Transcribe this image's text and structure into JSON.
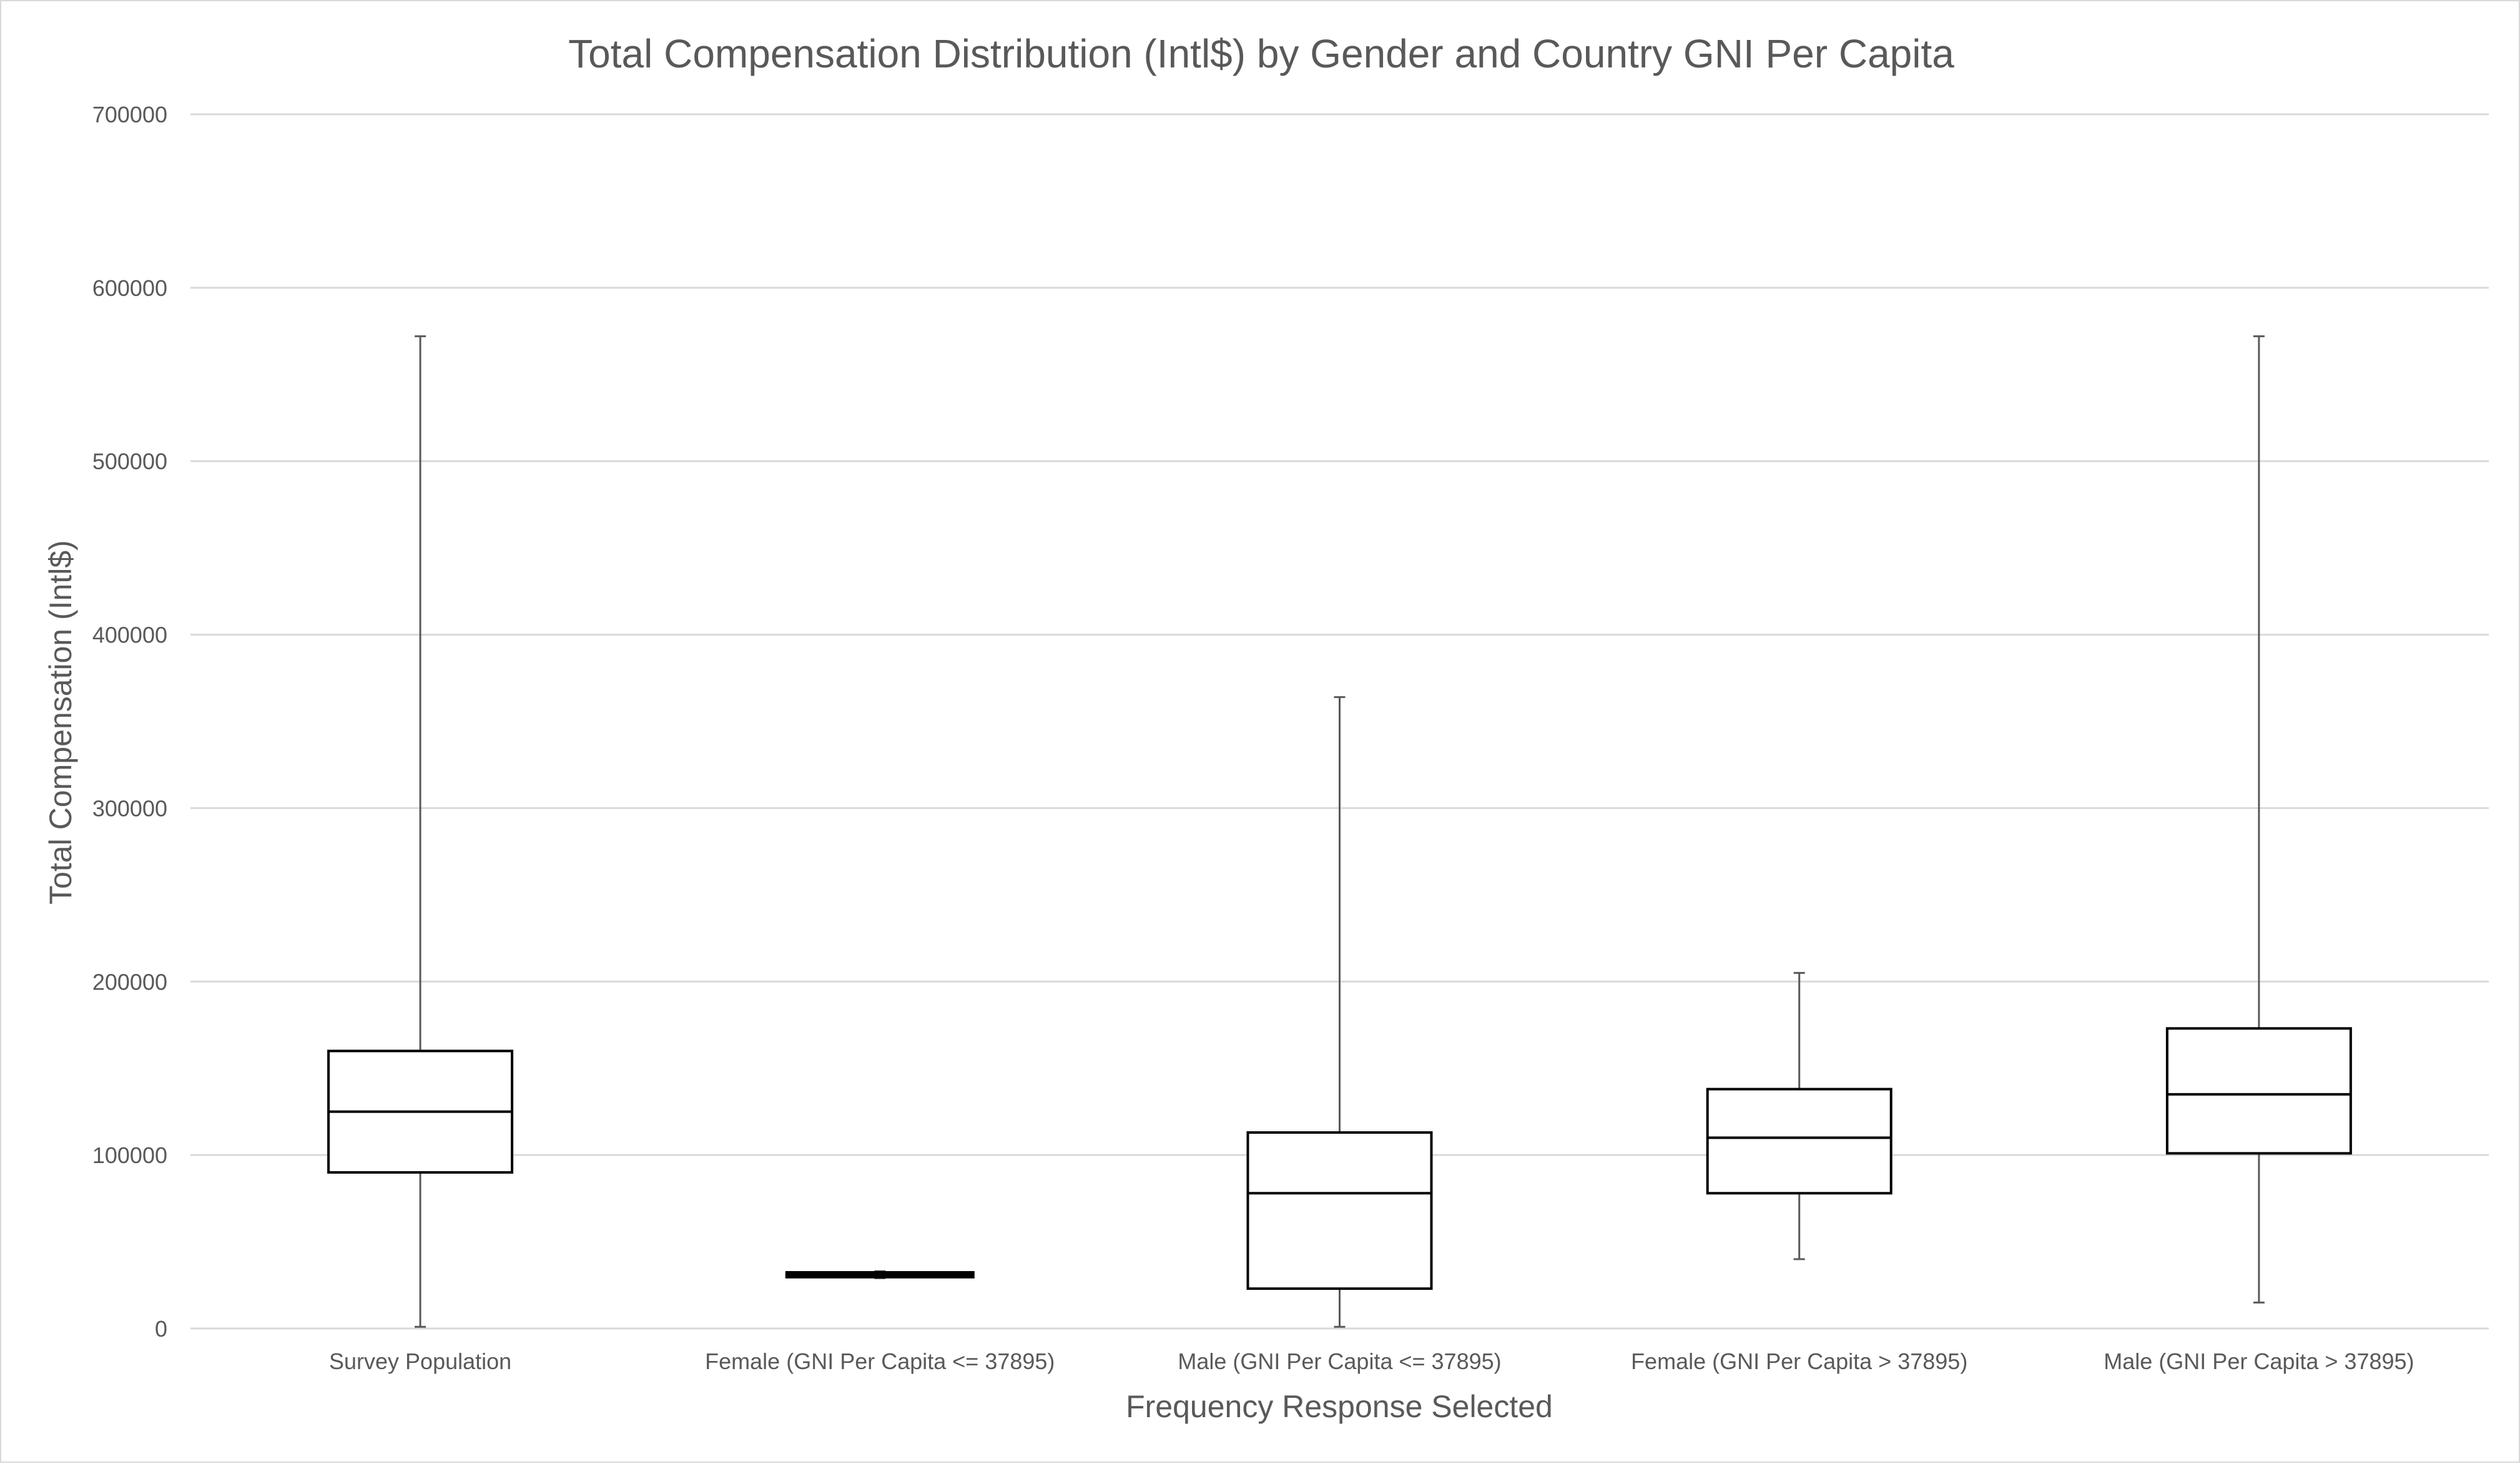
{
  "chart_data": {
    "type": "box",
    "title": "Total Compensation Distribution (Intl$) by Gender and Country GNI Per Capita",
    "xlabel": "Frequency Response Selected",
    "ylabel": "Total Compensation (Intl$)",
    "ylim": [
      0,
      700000
    ],
    "yticks": [
      0,
      100000,
      200000,
      300000,
      400000,
      500000,
      600000,
      700000
    ],
    "grid": true,
    "categories": [
      "Survey Population",
      "Female (GNI Per Capita <= 37895)",
      "Male (GNI Per Capita <= 37895)",
      "Female (GNI Per Capita > 37895)",
      "Male (GNI Per Capita > 37895)"
    ],
    "boxes": [
      {
        "min": 1000,
        "q1": 90000,
        "median": 125000,
        "q3": 160000,
        "max": 572000
      },
      {
        "min": 29000,
        "q1": 30500,
        "median": 31000,
        "q3": 31500,
        "max": 33000
      },
      {
        "min": 1000,
        "q1": 23000,
        "median": 78000,
        "q3": 113000,
        "max": 364000
      },
      {
        "min": 40000,
        "q1": 78000,
        "median": 110000,
        "q3": 138000,
        "max": 205000
      },
      {
        "min": 15000,
        "q1": 101000,
        "median": 135000,
        "q3": 173000,
        "max": 572000
      }
    ],
    "colors": {
      "box_stroke": "#000000",
      "whisker": "#595959",
      "grid": "#d9d9d9",
      "text": "#595959"
    }
  }
}
